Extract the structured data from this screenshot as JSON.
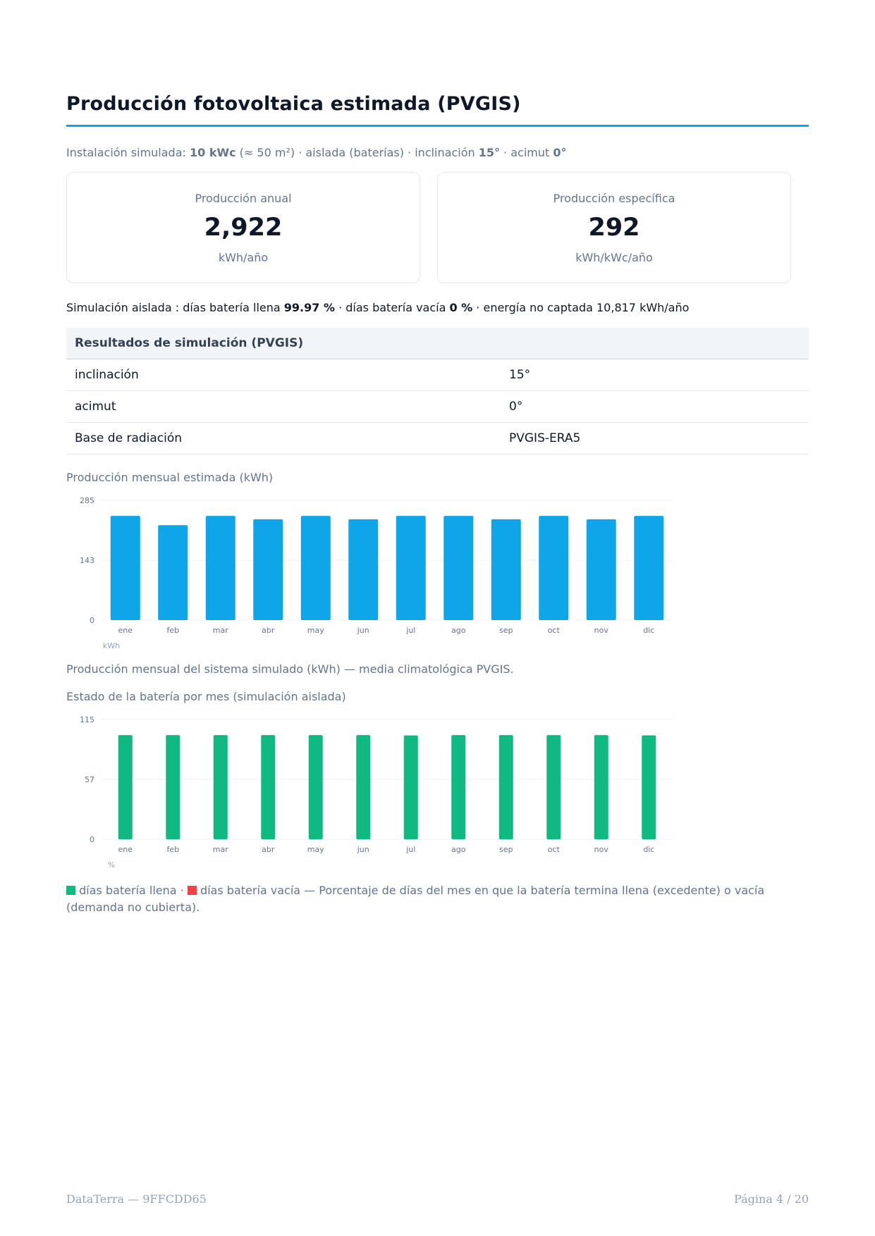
{
  "heading": "Producción fotovoltaica estimada (PVGIS)",
  "intro": {
    "prefix": "Instalación simulada: ",
    "power": "10 kWc",
    "area": " (≈ 50 m²) · aislada (baterías) · inclinación ",
    "tilt": "15°",
    "azimuth_label": " · acimut ",
    "azimuth": "0°"
  },
  "cards": [
    {
      "label": "Producción anual",
      "value": "2,922",
      "unit": "kWh/año"
    },
    {
      "label": "Producción específica",
      "value": "292",
      "unit": "kWh/kWc/año"
    }
  ],
  "summary": {
    "prefix": "Simulación aislada : días batería llena ",
    "full": "99.97 %",
    "mid": " · días batería vacía ",
    "empty": "0 %",
    "suffix": " · energía no captada 10,817 kWh/año"
  },
  "results_table": {
    "header": "Resultados de simulación (PVGIS)",
    "rows": [
      {
        "key": "inclinación",
        "value": "15°"
      },
      {
        "key": "acimut",
        "value": "0°"
      },
      {
        "key": "Base de radiación",
        "value": "PVGIS-ERA5"
      }
    ]
  },
  "production_chart": {
    "title": "Producción mensual estimada (kWh)",
    "caption": "Producción mensual del sistema simulado (kWh) — media climatológica PVGIS.",
    "color": "#0ea5e9"
  },
  "battery_chart": {
    "title": "Estado de la batería por mes (simulación aislada)",
    "colors": {
      "full": "#10b981",
      "empty": "#ef4444"
    }
  },
  "legend_note": {
    "full_label": "días batería llena",
    "sep": " · ",
    "empty_label": "días batería vacía",
    "text": " — Porcentaje de días del mes en que la batería termina llena (excedente) o vacía (demanda no cubierta)."
  },
  "chart_data": [
    {
      "type": "bar",
      "categories": [
        "ene",
        "feb",
        "mar",
        "abr",
        "may",
        "jun",
        "jul",
        "ago",
        "sep",
        "oct",
        "nov",
        "dic"
      ],
      "values": [
        248,
        226,
        248,
        240,
        248,
        240,
        248,
        248,
        240,
        248,
        240,
        248
      ],
      "ylim": [
        0,
        285
      ],
      "yticks": [
        "0",
        "143",
        "285"
      ],
      "ylabel": "kWh",
      "grid": true
    },
    {
      "type": "bar",
      "categories": [
        "ene",
        "feb",
        "mar",
        "abr",
        "may",
        "jun",
        "jul",
        "ago",
        "sep",
        "oct",
        "nov",
        "dic"
      ],
      "series": [
        {
          "name": "días batería llena",
          "values": [
            100,
            100,
            100,
            100,
            100,
            100,
            99.7,
            100,
            100,
            100,
            100,
            99.8
          ]
        },
        {
          "name": "días batería vacía",
          "values": [
            0,
            0,
            0,
            0,
            0,
            0,
            0,
            0,
            0,
            0,
            0,
            0
          ]
        }
      ],
      "ylim": [
        0,
        115
      ],
      "yticks": [
        "0",
        "57",
        "115"
      ],
      "ylabel": "%",
      "grid": true
    }
  ],
  "footer": {
    "left": "DataTerra — 9FFCDD65",
    "right": "Página 4 / 20"
  }
}
